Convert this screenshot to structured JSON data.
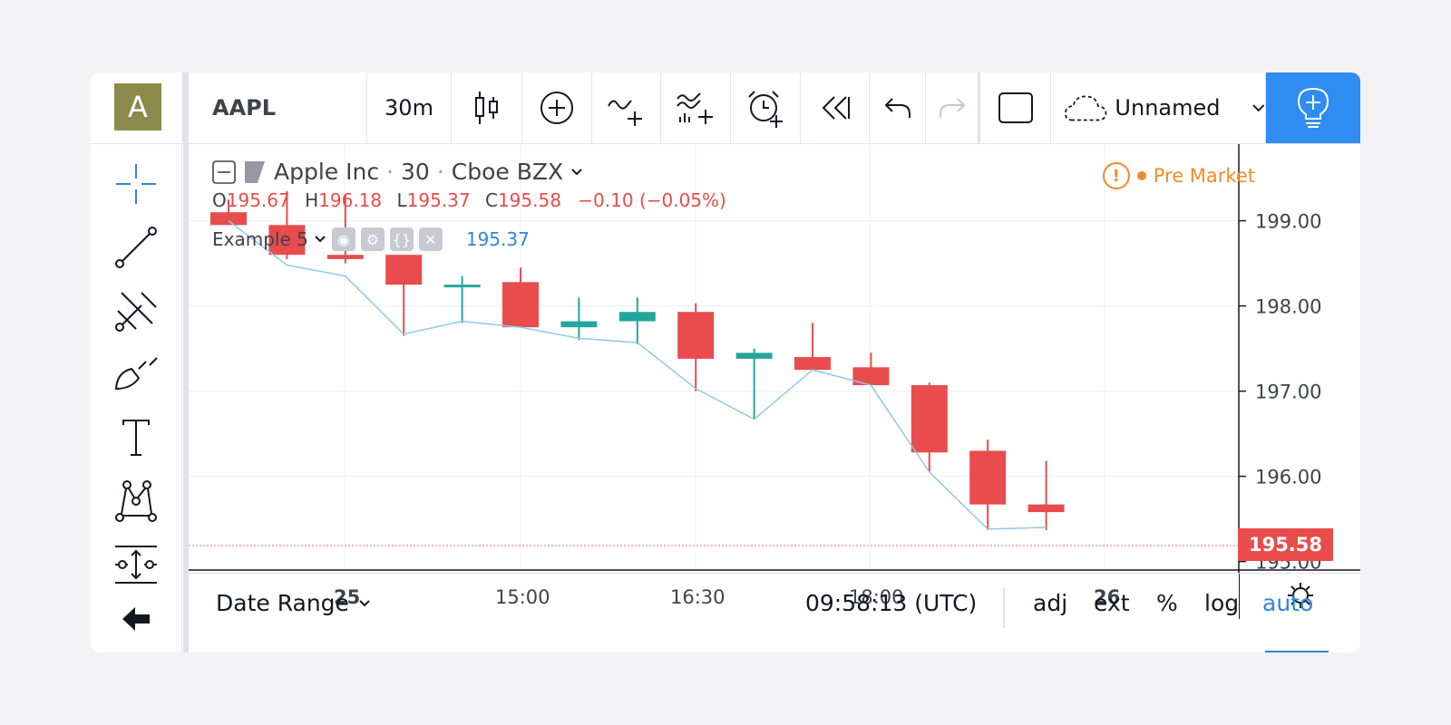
{
  "toolbar": {
    "avatar_letter": "A",
    "symbol": "AAPL",
    "interval": "30m",
    "layout_name": "Unnamed"
  },
  "legend": {
    "title": "Apple Inc",
    "interval": "30",
    "exchange": "Cboe BZX",
    "sep": "·",
    "open_label": "O",
    "open": "195.67",
    "high_label": "H",
    "high": "196.18",
    "low_label": "L",
    "low": "195.37",
    "close_label": "C",
    "close": "195.58",
    "change": "−0.10 (−0.05%)",
    "study_name": "Example 5",
    "study_value": "195.37",
    "session": "Pre Market",
    "warning": "!"
  },
  "price_axis": {
    "ticks": [
      "199.00",
      "198.00",
      "197.00",
      "196.00",
      "195.00"
    ],
    "last_price": "195.58"
  },
  "time_axis": {
    "ticks": [
      "25",
      "15:00",
      "16:30",
      "18:00",
      "26"
    ]
  },
  "bottom": {
    "date_range": "Date Range",
    "clock": "09:58:13 (UTC)",
    "adj": "adj",
    "ext": "ext",
    "percent": "%",
    "log": "log",
    "auto": "auto"
  },
  "colors": {
    "down": "#e84c4c",
    "up": "#26a69a",
    "line": "#8fc8ea",
    "accent": "#2f8cf0"
  },
  "chart_data": {
    "type": "candlestick",
    "ylim": [
      194.9,
      199.9
    ],
    "candles": [
      {
        "o": 199.1,
        "h": 199.25,
        "l": 198.95,
        "c": 198.95,
        "dir": "down"
      },
      {
        "o": 198.95,
        "h": 199.35,
        "l": 198.55,
        "c": 198.6,
        "dir": "down"
      },
      {
        "o": 198.6,
        "h": 199.3,
        "l": 198.5,
        "c": 198.55,
        "dir": "down"
      },
      {
        "o": 198.6,
        "h": 198.6,
        "l": 197.65,
        "c": 198.25,
        "dir": "down"
      },
      {
        "o": 198.25,
        "h": 198.35,
        "l": 197.8,
        "c": 198.22,
        "dir": "up"
      },
      {
        "o": 198.28,
        "h": 198.45,
        "l": 197.75,
        "c": 197.75,
        "dir": "down"
      },
      {
        "o": 197.75,
        "h": 198.1,
        "l": 197.6,
        "c": 197.82,
        "dir": "up"
      },
      {
        "o": 197.82,
        "h": 198.1,
        "l": 197.55,
        "c": 197.93,
        "dir": "up"
      },
      {
        "o": 197.93,
        "h": 198.03,
        "l": 197.0,
        "c": 197.38,
        "dir": "down"
      },
      {
        "o": 197.38,
        "h": 197.5,
        "l": 196.67,
        "c": 197.45,
        "dir": "up"
      },
      {
        "o": 197.4,
        "h": 197.8,
        "l": 197.25,
        "c": 197.25,
        "dir": "down"
      },
      {
        "o": 197.28,
        "h": 197.45,
        "l": 197.07,
        "c": 197.07,
        "dir": "down"
      },
      {
        "o": 197.07,
        "h": 197.1,
        "l": 196.05,
        "c": 196.28,
        "dir": "down"
      },
      {
        "o": 196.3,
        "h": 196.43,
        "l": 195.37,
        "c": 195.67,
        "dir": "down"
      },
      {
        "o": 195.67,
        "h": 196.18,
        "l": 195.37,
        "c": 195.58,
        "dir": "down"
      }
    ],
    "line": [
      199.0,
      198.48,
      198.35,
      197.67,
      197.82,
      197.75,
      197.62,
      197.57,
      197.03,
      196.67,
      197.25,
      197.07,
      196.05,
      195.38,
      195.4
    ]
  }
}
